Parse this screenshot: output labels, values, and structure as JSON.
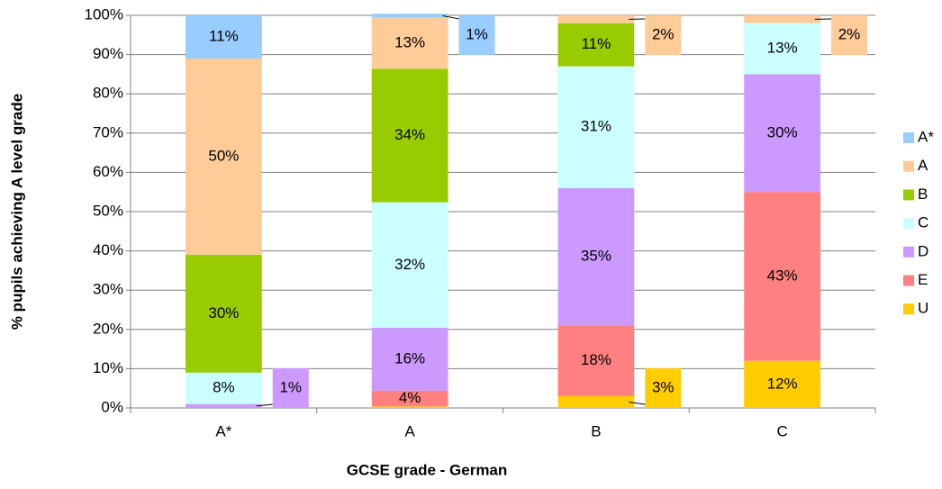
{
  "chart_data": {
    "type": "stacked-bar-100",
    "x_label": "GCSE grade - German",
    "y_label": "% pupils achieving A level grade",
    "categories": [
      "A*",
      "A",
      "B",
      "C"
    ],
    "ylim": [
      0,
      100
    ],
    "yticks": [
      {
        "value": 0,
        "label": "0%"
      },
      {
        "value": 10,
        "label": "10%"
      },
      {
        "value": 20,
        "label": "20%"
      },
      {
        "value": 30,
        "label": "30%"
      },
      {
        "value": 40,
        "label": "40%"
      },
      {
        "value": 50,
        "label": "50%"
      },
      {
        "value": 60,
        "label": "60%"
      },
      {
        "value": 70,
        "label": "70%"
      },
      {
        "value": 80,
        "label": "80%"
      },
      {
        "value": 90,
        "label": "90%"
      },
      {
        "value": 100,
        "label": "100%"
      }
    ],
    "grid": true,
    "legend": "right",
    "series": [
      {
        "name": "U",
        "color": "#ffcc00",
        "values": [
          0,
          0.4,
          3,
          12
        ],
        "value_labels": [
          null,
          null,
          "3%",
          "12%"
        ]
      },
      {
        "name": "E",
        "color": "#ff8080",
        "values": [
          0,
          4,
          18,
          43
        ],
        "value_labels": [
          null,
          "4%",
          "18%",
          "43%"
        ]
      },
      {
        "name": "D",
        "color": "#cc99ff",
        "values": [
          1,
          16,
          35,
          30
        ],
        "value_labels": [
          "1%",
          "16%",
          "35%",
          "30%"
        ]
      },
      {
        "name": "C",
        "color": "#ccffff",
        "values": [
          8,
          32,
          31,
          13
        ],
        "value_labels": [
          "8%",
          "32%",
          "31%",
          "13%"
        ]
      },
      {
        "name": "B",
        "color": "#99cc00",
        "values": [
          30,
          34,
          11,
          0
        ],
        "value_labels": [
          "30%",
          "34%",
          "11%",
          null
        ]
      },
      {
        "name": "A",
        "color": "#ffcc99",
        "values": [
          50,
          13,
          2,
          2
        ],
        "value_labels": [
          "50%",
          "13%",
          "2%",
          "2%"
        ]
      },
      {
        "name": "A*",
        "color": "#99ccff",
        "values": [
          11,
          1,
          0,
          0
        ],
        "value_labels": [
          "11%",
          "1%",
          null,
          null
        ]
      }
    ]
  }
}
